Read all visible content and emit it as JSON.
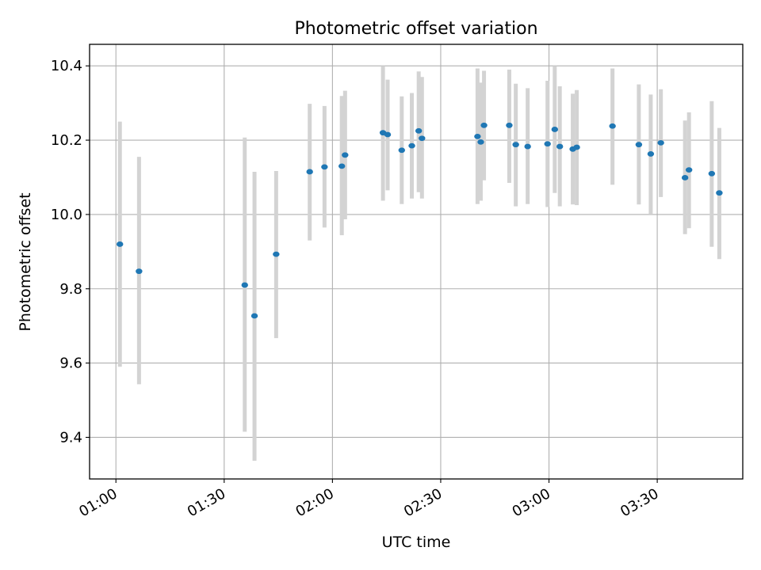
{
  "chart_data": {
    "type": "scatter",
    "title": "Photometric offset variation",
    "xlabel": "UTC time",
    "ylabel": "Photometric offset",
    "grid": true,
    "x_ticks": [
      {
        "minutes": 60,
        "label": "01:00"
      },
      {
        "minutes": 90,
        "label": "01:30"
      },
      {
        "minutes": 120,
        "label": "02:00"
      },
      {
        "minutes": 150,
        "label": "02:30"
      },
      {
        "minutes": 180,
        "label": "03:00"
      },
      {
        "minutes": 210,
        "label": "03:30"
      }
    ],
    "y_ticks": [
      {
        "value": 9.4,
        "label": "9.4"
      },
      {
        "value": 9.6,
        "label": "9.6"
      },
      {
        "value": 9.8,
        "label": "9.8"
      },
      {
        "value": 10.0,
        "label": "10.0"
      },
      {
        "value": 10.2,
        "label": "10.2"
      },
      {
        "value": 10.4,
        "label": "10.4"
      }
    ],
    "xlim_minutes": [
      52.7,
      233.7
    ],
    "ylim": [
      9.288,
      10.458
    ],
    "point_color": "#1f77b4",
    "errorbar_color": "#d3d3d3",
    "points": [
      {
        "t": 61.1,
        "y": 9.92,
        "lo": 9.59,
        "hi": 10.25
      },
      {
        "t": 66.4,
        "y": 9.847,
        "lo": 9.543,
        "hi": 10.155
      },
      {
        "t": 95.7,
        "y": 9.81,
        "lo": 9.415,
        "hi": 10.207
      },
      {
        "t": 98.4,
        "y": 9.727,
        "lo": 9.337,
        "hi": 10.115
      },
      {
        "t": 104.4,
        "y": 9.893,
        "lo": 9.667,
        "hi": 10.117
      },
      {
        "t": 113.7,
        "y": 10.115,
        "lo": 9.93,
        "hi": 10.298
      },
      {
        "t": 117.8,
        "y": 10.128,
        "lo": 9.965,
        "hi": 10.292
      },
      {
        "t": 122.6,
        "y": 10.13,
        "lo": 9.944,
        "hi": 10.319
      },
      {
        "t": 123.5,
        "y": 10.16,
        "lo": 9.987,
        "hi": 10.333
      },
      {
        "t": 134.0,
        "y": 10.22,
        "lo": 10.037,
        "hi": 10.4
      },
      {
        "t": 135.3,
        "y": 10.215,
        "lo": 10.065,
        "hi": 10.363
      },
      {
        "t": 139.2,
        "y": 10.173,
        "lo": 10.028,
        "hi": 10.318
      },
      {
        "t": 142.0,
        "y": 10.185,
        "lo": 10.043,
        "hi": 10.327
      },
      {
        "t": 143.9,
        "y": 10.225,
        "lo": 10.06,
        "hi": 10.385
      },
      {
        "t": 144.8,
        "y": 10.205,
        "lo": 10.043,
        "hi": 10.37
      },
      {
        "t": 160.2,
        "y": 10.21,
        "lo": 10.028,
        "hi": 10.393
      },
      {
        "t": 161.1,
        "y": 10.195,
        "lo": 10.037,
        "hi": 10.355
      },
      {
        "t": 162.0,
        "y": 10.24,
        "lo": 10.092,
        "hi": 10.387
      },
      {
        "t": 169.0,
        "y": 10.24,
        "lo": 10.085,
        "hi": 10.39
      },
      {
        "t": 170.8,
        "y": 10.188,
        "lo": 10.022,
        "hi": 10.352
      },
      {
        "t": 174.1,
        "y": 10.183,
        "lo": 10.028,
        "hi": 10.34
      },
      {
        "t": 179.6,
        "y": 10.19,
        "lo": 10.02,
        "hi": 10.36
      },
      {
        "t": 181.6,
        "y": 10.229,
        "lo": 10.058,
        "hi": 10.4
      },
      {
        "t": 183.0,
        "y": 10.183,
        "lo": 10.022,
        "hi": 10.345
      },
      {
        "t": 186.6,
        "y": 10.176,
        "lo": 10.027,
        "hi": 10.325
      },
      {
        "t": 187.7,
        "y": 10.181,
        "lo": 10.025,
        "hi": 10.335
      },
      {
        "t": 197.6,
        "y": 10.238,
        "lo": 10.08,
        "hi": 10.393
      },
      {
        "t": 204.9,
        "y": 10.188,
        "lo": 10.027,
        "hi": 10.35
      },
      {
        "t": 208.2,
        "y": 10.163,
        "lo": 10.0,
        "hi": 10.323
      },
      {
        "t": 211.0,
        "y": 10.193,
        "lo": 10.047,
        "hi": 10.337
      },
      {
        "t": 217.7,
        "y": 10.099,
        "lo": 9.947,
        "hi": 10.253
      },
      {
        "t": 218.8,
        "y": 10.12,
        "lo": 9.963,
        "hi": 10.275
      },
      {
        "t": 225.1,
        "y": 10.11,
        "lo": 9.913,
        "hi": 10.305
      },
      {
        "t": 227.2,
        "y": 10.058,
        "lo": 9.88,
        "hi": 10.233
      }
    ]
  }
}
